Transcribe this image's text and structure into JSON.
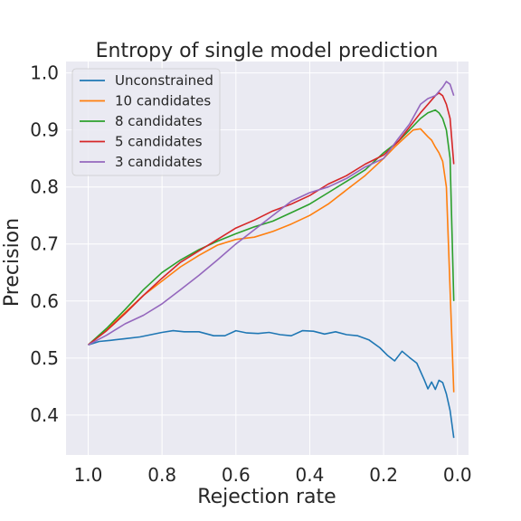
{
  "chart_data": {
    "type": "line",
    "title": "Entropy of single model prediction",
    "xlabel": "Rejection rate",
    "ylabel": "Precision",
    "xlim": [
      1.06,
      -0.03
    ],
    "ylim": [
      0.33,
      1.02
    ],
    "x_inverted": true,
    "grid": true,
    "legend_position": "top-left",
    "xticks": [
      1.0,
      0.8,
      0.6,
      0.4,
      0.2,
      0.0
    ],
    "xtick_labels": [
      "1.0",
      "0.8",
      "0.6",
      "0.4",
      "0.2",
      "0.0"
    ],
    "yticks": [
      0.4,
      0.5,
      0.6,
      0.7,
      0.8,
      0.9,
      1.0
    ],
    "ytick_labels": [
      "0.4",
      "0.5",
      "0.6",
      "0.7",
      "0.8",
      "0.9",
      "1.0"
    ],
    "colors": {
      "background": "#eaeaf2",
      "grid": "#ffffff"
    },
    "series": [
      {
        "name": "Unconstrained",
        "color": "#1f77b4",
        "x": [
          1.0,
          0.97,
          0.94,
          0.9,
          0.86,
          0.83,
          0.8,
          0.77,
          0.74,
          0.7,
          0.66,
          0.63,
          0.6,
          0.57,
          0.54,
          0.51,
          0.48,
          0.45,
          0.42,
          0.39,
          0.36,
          0.33,
          0.3,
          0.27,
          0.24,
          0.21,
          0.19,
          0.17,
          0.15,
          0.13,
          0.11,
          0.09,
          0.08,
          0.07,
          0.06,
          0.05,
          0.04,
          0.03,
          0.02,
          0.01
        ],
        "y": [
          0.523,
          0.529,
          0.531,
          0.534,
          0.537,
          0.541,
          0.545,
          0.548,
          0.546,
          0.546,
          0.539,
          0.539,
          0.548,
          0.544,
          0.543,
          0.545,
          0.541,
          0.539,
          0.548,
          0.547,
          0.542,
          0.546,
          0.541,
          0.539,
          0.532,
          0.518,
          0.505,
          0.495,
          0.512,
          0.501,
          0.491,
          0.462,
          0.446,
          0.458,
          0.445,
          0.461,
          0.457,
          0.437,
          0.408,
          0.36
        ]
      },
      {
        "name": "10 candidates",
        "color": "#ff7f0e",
        "x": [
          1.0,
          0.95,
          0.9,
          0.85,
          0.8,
          0.75,
          0.7,
          0.65,
          0.6,
          0.55,
          0.5,
          0.45,
          0.4,
          0.35,
          0.3,
          0.25,
          0.2,
          0.17,
          0.14,
          0.12,
          0.1,
          0.08,
          0.07,
          0.06,
          0.05,
          0.04,
          0.03,
          0.02,
          0.01
        ],
        "y": [
          0.523,
          0.55,
          0.58,
          0.61,
          0.635,
          0.66,
          0.68,
          0.698,
          0.708,
          0.712,
          0.722,
          0.735,
          0.75,
          0.77,
          0.795,
          0.82,
          0.85,
          0.87,
          0.888,
          0.9,
          0.902,
          0.888,
          0.882,
          0.87,
          0.86,
          0.845,
          0.8,
          0.62,
          0.44
        ]
      },
      {
        "name": "8 candidates",
        "color": "#2ca02c",
        "x": [
          1.0,
          0.95,
          0.9,
          0.85,
          0.8,
          0.75,
          0.7,
          0.65,
          0.6,
          0.55,
          0.5,
          0.45,
          0.4,
          0.35,
          0.3,
          0.25,
          0.2,
          0.16,
          0.13,
          0.1,
          0.08,
          0.06,
          0.05,
          0.04,
          0.03,
          0.02,
          0.01
        ],
        "y": [
          0.523,
          0.552,
          0.585,
          0.62,
          0.65,
          0.672,
          0.69,
          0.705,
          0.718,
          0.73,
          0.74,
          0.755,
          0.77,
          0.79,
          0.81,
          0.83,
          0.86,
          0.88,
          0.9,
          0.92,
          0.93,
          0.935,
          0.93,
          0.92,
          0.9,
          0.85,
          0.6
        ]
      },
      {
        "name": "5 candidates",
        "color": "#d62728",
        "x": [
          1.0,
          0.95,
          0.9,
          0.85,
          0.8,
          0.75,
          0.7,
          0.65,
          0.6,
          0.55,
          0.5,
          0.45,
          0.4,
          0.35,
          0.3,
          0.25,
          0.2,
          0.16,
          0.13,
          0.1,
          0.08,
          0.06,
          0.05,
          0.04,
          0.03,
          0.02,
          0.01
        ],
        "y": [
          0.523,
          0.548,
          0.578,
          0.61,
          0.64,
          0.668,
          0.688,
          0.708,
          0.728,
          0.742,
          0.758,
          0.77,
          0.785,
          0.805,
          0.82,
          0.84,
          0.856,
          0.88,
          0.905,
          0.93,
          0.945,
          0.96,
          0.965,
          0.96,
          0.945,
          0.92,
          0.84
        ]
      },
      {
        "name": "3 candidates",
        "color": "#9467bd",
        "x": [
          1.0,
          0.95,
          0.9,
          0.85,
          0.8,
          0.75,
          0.7,
          0.65,
          0.6,
          0.55,
          0.5,
          0.45,
          0.4,
          0.35,
          0.3,
          0.25,
          0.2,
          0.16,
          0.13,
          0.1,
          0.08,
          0.06,
          0.04,
          0.03,
          0.02,
          0.01
        ],
        "y": [
          0.523,
          0.54,
          0.56,
          0.575,
          0.595,
          0.62,
          0.645,
          0.672,
          0.7,
          0.725,
          0.75,
          0.775,
          0.79,
          0.8,
          0.815,
          0.835,
          0.85,
          0.885,
          0.91,
          0.945,
          0.955,
          0.96,
          0.975,
          0.985,
          0.98,
          0.96
        ]
      }
    ]
  }
}
